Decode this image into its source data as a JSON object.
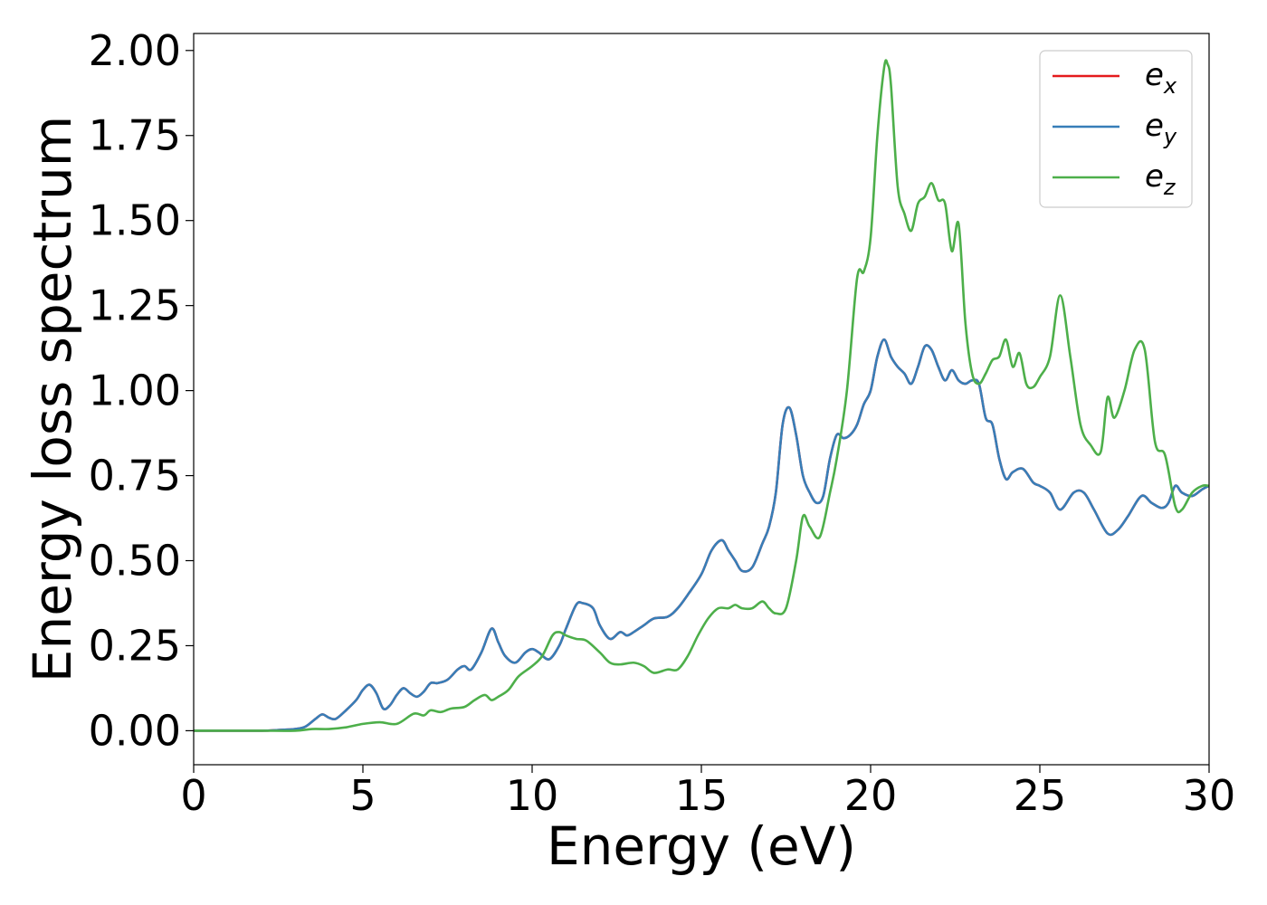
{
  "chart_data": {
    "type": "line",
    "title": "",
    "xlabel": "Energy (eV)",
    "ylabel": "Energy loss spectrum",
    "xlim": [
      0,
      30
    ],
    "ylim": [
      -0.1,
      2.05
    ],
    "xticks": [
      0,
      5,
      10,
      15,
      20,
      25,
      30
    ],
    "xtick_labels": [
      "0",
      "5",
      "10",
      "15",
      "20",
      "25",
      "30"
    ],
    "yticks": [
      0.0,
      0.25,
      0.5,
      0.75,
      1.0,
      1.25,
      1.5,
      1.75,
      2.0
    ],
    "ytick_labels": [
      "0.00",
      "0.25",
      "0.50",
      "0.75",
      "1.00",
      "1.25",
      "1.50",
      "1.75",
      "2.00"
    ],
    "grid": false,
    "legend_position": "top-right",
    "series": [
      {
        "name": "e_x",
        "legend_base": "e",
        "legend_sub": "x",
        "color": "#e41a1c",
        "hidden_under": "e_y",
        "x": [
          0,
          1,
          2,
          2.5,
          3,
          3.3,
          3.6,
          3.8,
          4.0,
          4.2,
          4.5,
          4.8,
          5.0,
          5.2,
          5.4,
          5.6,
          5.8,
          6.0,
          6.2,
          6.4,
          6.6,
          6.8,
          7.0,
          7.2,
          7.5,
          7.8,
          8.0,
          8.2,
          8.5,
          8.8,
          9.0,
          9.2,
          9.5,
          9.8,
          10.0,
          10.2,
          10.5,
          10.8,
          11.0,
          11.3,
          11.5,
          11.8,
          12.0,
          12.3,
          12.6,
          12.8,
          13.0,
          13.3,
          13.6,
          14.0,
          14.3,
          14.6,
          15.0,
          15.3,
          15.6,
          15.8,
          16.0,
          16.2,
          16.5,
          16.8,
          17.0,
          17.2,
          17.4,
          17.6,
          17.8,
          18.0,
          18.2,
          18.4,
          18.6,
          18.8,
          19.0,
          19.2,
          19.4,
          19.6,
          19.8,
          20.0,
          20.2,
          20.4,
          20.6,
          20.8,
          21.0,
          21.2,
          21.4,
          21.6,
          21.8,
          22.0,
          22.2,
          22.4,
          22.6,
          22.8,
          23.0,
          23.2,
          23.4,
          23.6,
          23.8,
          24.0,
          24.2,
          24.5,
          24.8,
          25.0,
          25.3,
          25.6,
          26.0,
          26.3,
          26.6,
          27.0,
          27.3,
          27.6,
          28.0,
          28.3,
          28.6,
          28.8,
          29.0,
          29.2,
          29.5,
          29.8,
          30.0
        ],
        "y": [
          0.0,
          0.0,
          0.0,
          0.002,
          0.005,
          0.012,
          0.035,
          0.048,
          0.038,
          0.035,
          0.06,
          0.09,
          0.12,
          0.135,
          0.11,
          0.065,
          0.075,
          0.105,
          0.125,
          0.11,
          0.1,
          0.115,
          0.14,
          0.14,
          0.15,
          0.18,
          0.19,
          0.18,
          0.23,
          0.3,
          0.26,
          0.22,
          0.2,
          0.23,
          0.24,
          0.23,
          0.21,
          0.25,
          0.3,
          0.37,
          0.375,
          0.36,
          0.31,
          0.27,
          0.29,
          0.28,
          0.29,
          0.31,
          0.33,
          0.335,
          0.36,
          0.4,
          0.46,
          0.53,
          0.56,
          0.53,
          0.5,
          0.47,
          0.48,
          0.55,
          0.6,
          0.7,
          0.9,
          0.95,
          0.87,
          0.75,
          0.7,
          0.67,
          0.69,
          0.8,
          0.87,
          0.86,
          0.87,
          0.9,
          0.96,
          1.0,
          1.1,
          1.15,
          1.1,
          1.07,
          1.05,
          1.02,
          1.07,
          1.13,
          1.12,
          1.07,
          1.03,
          1.06,
          1.03,
          1.02,
          1.03,
          1.02,
          0.92,
          0.9,
          0.8,
          0.74,
          0.76,
          0.77,
          0.73,
          0.72,
          0.7,
          0.65,
          0.7,
          0.7,
          0.65,
          0.58,
          0.59,
          0.63,
          0.69,
          0.67,
          0.655,
          0.67,
          0.72,
          0.7,
          0.69,
          0.71,
          0.72
        ]
      },
      {
        "name": "e_y",
        "legend_base": "e",
        "legend_sub": "y",
        "color": "#377eb8",
        "x": [
          0,
          1,
          2,
          2.5,
          3,
          3.3,
          3.6,
          3.8,
          4.0,
          4.2,
          4.5,
          4.8,
          5.0,
          5.2,
          5.4,
          5.6,
          5.8,
          6.0,
          6.2,
          6.4,
          6.6,
          6.8,
          7.0,
          7.2,
          7.5,
          7.8,
          8.0,
          8.2,
          8.5,
          8.8,
          9.0,
          9.2,
          9.5,
          9.8,
          10.0,
          10.2,
          10.5,
          10.8,
          11.0,
          11.3,
          11.5,
          11.8,
          12.0,
          12.3,
          12.6,
          12.8,
          13.0,
          13.3,
          13.6,
          14.0,
          14.3,
          14.6,
          15.0,
          15.3,
          15.6,
          15.8,
          16.0,
          16.2,
          16.5,
          16.8,
          17.0,
          17.2,
          17.4,
          17.6,
          17.8,
          18.0,
          18.2,
          18.4,
          18.6,
          18.8,
          19.0,
          19.2,
          19.4,
          19.6,
          19.8,
          20.0,
          20.2,
          20.4,
          20.6,
          20.8,
          21.0,
          21.2,
          21.4,
          21.6,
          21.8,
          22.0,
          22.2,
          22.4,
          22.6,
          22.8,
          23.0,
          23.2,
          23.4,
          23.6,
          23.8,
          24.0,
          24.2,
          24.5,
          24.8,
          25.0,
          25.3,
          25.6,
          26.0,
          26.3,
          26.6,
          27.0,
          27.3,
          27.6,
          28.0,
          28.3,
          28.6,
          28.8,
          29.0,
          29.2,
          29.5,
          29.8,
          30.0
        ],
        "y": [
          0.0,
          0.0,
          0.0,
          0.002,
          0.005,
          0.012,
          0.035,
          0.048,
          0.038,
          0.035,
          0.06,
          0.09,
          0.12,
          0.135,
          0.11,
          0.065,
          0.075,
          0.105,
          0.125,
          0.11,
          0.1,
          0.115,
          0.14,
          0.14,
          0.15,
          0.18,
          0.19,
          0.18,
          0.23,
          0.3,
          0.26,
          0.22,
          0.2,
          0.23,
          0.24,
          0.23,
          0.21,
          0.25,
          0.3,
          0.37,
          0.375,
          0.36,
          0.31,
          0.27,
          0.29,
          0.28,
          0.29,
          0.31,
          0.33,
          0.335,
          0.36,
          0.4,
          0.46,
          0.53,
          0.56,
          0.53,
          0.5,
          0.47,
          0.48,
          0.55,
          0.6,
          0.7,
          0.9,
          0.95,
          0.87,
          0.75,
          0.7,
          0.67,
          0.69,
          0.8,
          0.87,
          0.86,
          0.87,
          0.9,
          0.96,
          1.0,
          1.1,
          1.15,
          1.1,
          1.07,
          1.05,
          1.02,
          1.07,
          1.13,
          1.12,
          1.07,
          1.03,
          1.06,
          1.03,
          1.02,
          1.03,
          1.02,
          0.92,
          0.9,
          0.8,
          0.74,
          0.76,
          0.77,
          0.73,
          0.72,
          0.7,
          0.65,
          0.7,
          0.7,
          0.65,
          0.58,
          0.59,
          0.63,
          0.69,
          0.67,
          0.655,
          0.67,
          0.72,
          0.7,
          0.69,
          0.71,
          0.72
        ]
      },
      {
        "name": "e_z",
        "legend_base": "e",
        "legend_sub": "z",
        "color": "#4daf4a",
        "x": [
          0,
          1,
          2,
          3,
          3.5,
          4.0,
          4.5,
          5.0,
          5.5,
          6.0,
          6.5,
          6.8,
          7.0,
          7.3,
          7.6,
          8.0,
          8.3,
          8.6,
          8.8,
          9.0,
          9.3,
          9.6,
          10.0,
          10.3,
          10.6,
          10.8,
          11.0,
          11.3,
          11.6,
          12.0,
          12.3,
          12.6,
          13.0,
          13.3,
          13.6,
          14.0,
          14.3,
          14.6,
          14.9,
          15.2,
          15.5,
          15.8,
          16.0,
          16.2,
          16.5,
          16.8,
          17.0,
          17.2,
          17.5,
          17.8,
          18.0,
          18.2,
          18.5,
          18.8,
          19.0,
          19.3,
          19.6,
          19.8,
          20.0,
          20.2,
          20.4,
          20.5,
          20.6,
          20.8,
          21.0,
          21.2,
          21.4,
          21.6,
          21.8,
          22.0,
          22.2,
          22.4,
          22.6,
          22.8,
          23.0,
          23.2,
          23.4,
          23.6,
          23.8,
          24.0,
          24.2,
          24.4,
          24.6,
          24.8,
          25.0,
          25.3,
          25.6,
          25.9,
          26.2,
          26.5,
          26.8,
          27.0,
          27.2,
          27.5,
          27.8,
          28.1,
          28.4,
          28.7,
          29.0,
          29.2,
          29.5,
          29.8,
          30.0
        ],
        "y": [
          0.0,
          0.0,
          0.0,
          0.0,
          0.005,
          0.005,
          0.01,
          0.02,
          0.025,
          0.02,
          0.05,
          0.045,
          0.06,
          0.055,
          0.065,
          0.07,
          0.09,
          0.105,
          0.09,
          0.1,
          0.12,
          0.16,
          0.19,
          0.22,
          0.28,
          0.29,
          0.28,
          0.27,
          0.265,
          0.23,
          0.2,
          0.195,
          0.2,
          0.19,
          0.17,
          0.18,
          0.18,
          0.22,
          0.28,
          0.33,
          0.36,
          0.36,
          0.37,
          0.36,
          0.36,
          0.38,
          0.36,
          0.345,
          0.36,
          0.5,
          0.63,
          0.6,
          0.57,
          0.7,
          0.8,
          1.0,
          1.33,
          1.35,
          1.45,
          1.75,
          1.95,
          1.96,
          1.9,
          1.6,
          1.52,
          1.47,
          1.55,
          1.57,
          1.61,
          1.56,
          1.55,
          1.41,
          1.49,
          1.2,
          1.05,
          1.02,
          1.05,
          1.09,
          1.1,
          1.15,
          1.07,
          1.11,
          1.02,
          1.01,
          1.04,
          1.1,
          1.28,
          1.1,
          0.9,
          0.84,
          0.82,
          0.98,
          0.92,
          1.0,
          1.12,
          1.12,
          0.85,
          0.81,
          0.66,
          0.65,
          0.7,
          0.72,
          0.72
        ]
      }
    ]
  }
}
